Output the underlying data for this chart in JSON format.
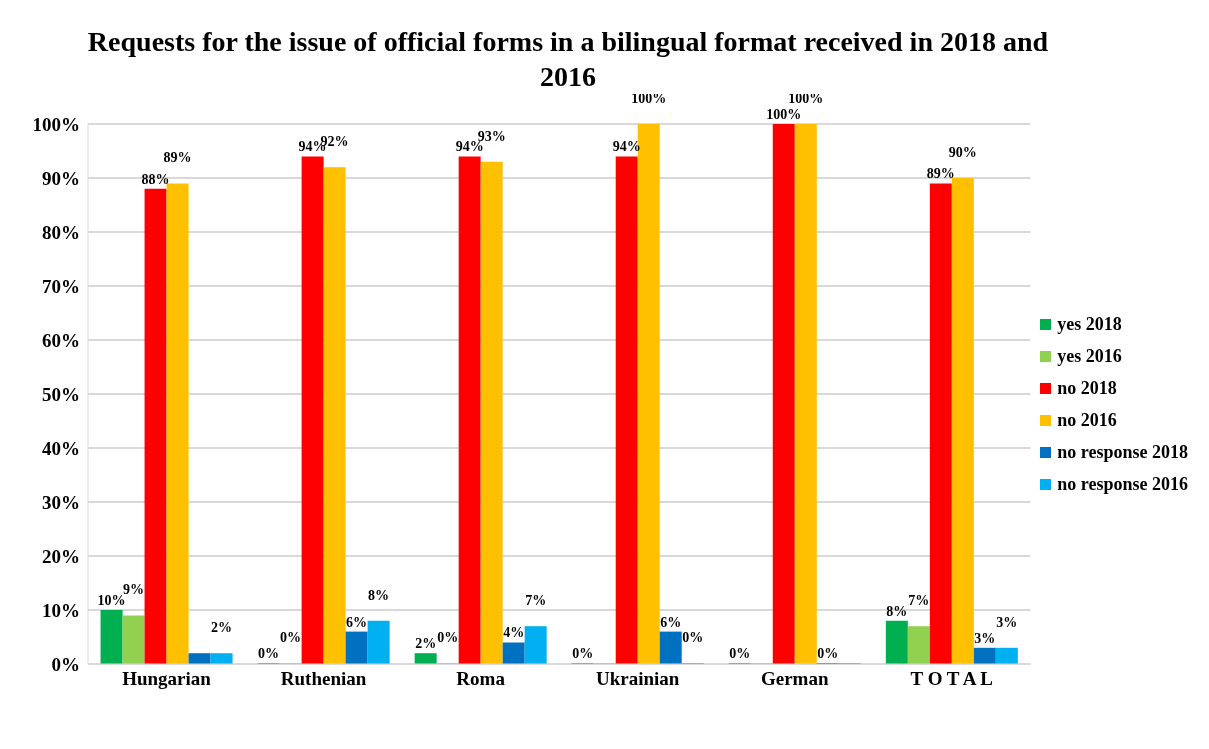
{
  "chart_data": {
    "type": "bar",
    "title": "Requests for the issue of official forms in a bilingual format received in 2018 and 2016",
    "categories": [
      "Hungarian",
      "Ruthenian",
      "Roma",
      "Ukrainian",
      "German",
      "T O T A L"
    ],
    "series": [
      {
        "name": "yes 2018",
        "color": "#00b050",
        "values": [
          10,
          0,
          2,
          0,
          0,
          8
        ],
        "value_labels": [
          "10%",
          "0%",
          "2%",
          "0%",
          "0%",
          "8%"
        ]
      },
      {
        "name": "yes 2016",
        "color": "#92d050",
        "values": [
          9,
          0,
          0,
          0,
          0,
          7
        ],
        "value_labels": [
          "9%",
          "0%",
          "0%",
          null,
          null,
          "7%"
        ]
      },
      {
        "name": "no 2018",
        "color": "#ff0000",
        "values": [
          88,
          94,
          94,
          94,
          100,
          89
        ],
        "value_labels": [
          "88%",
          "94%",
          "94%",
          "94%",
          "100%",
          "89%"
        ]
      },
      {
        "name": "no 2016",
        "color": "#ffc000",
        "values": [
          89,
          92,
          93,
          100,
          100,
          90
        ],
        "value_labels": [
          "89%",
          "92%",
          "93%",
          "100%",
          "100%",
          "90%"
        ]
      },
      {
        "name": "no response 2018",
        "color": "#0070c0",
        "values": [
          2,
          6,
          4,
          6,
          0,
          3
        ],
        "value_labels": [
          null,
          "6%",
          "4%",
          "6%",
          "0%",
          "3%"
        ]
      },
      {
        "name": "no response 2016",
        "color": "#00b0f0",
        "values": [
          2,
          8,
          7,
          0,
          0,
          3
        ],
        "value_labels": [
          "2%",
          "8%",
          "7%",
          "0%",
          null,
          "3%"
        ]
      }
    ],
    "ylim": [
      0,
      100
    ],
    "yticks": [
      {
        "value": 0,
        "label": "0%"
      },
      {
        "value": 10,
        "label": "10%"
      },
      {
        "value": 20,
        "label": "20%"
      },
      {
        "value": 30,
        "label": "30%"
      },
      {
        "value": 40,
        "label": "40%"
      },
      {
        "value": 50,
        "label": "50%"
      },
      {
        "value": 60,
        "label": "60%"
      },
      {
        "value": 70,
        "label": "70%"
      },
      {
        "value": 80,
        "label": "80%"
      },
      {
        "value": 90,
        "label": "90%"
      },
      {
        "value": 100,
        "label": "100%"
      }
    ],
    "grid": "y",
    "legend": "right"
  }
}
